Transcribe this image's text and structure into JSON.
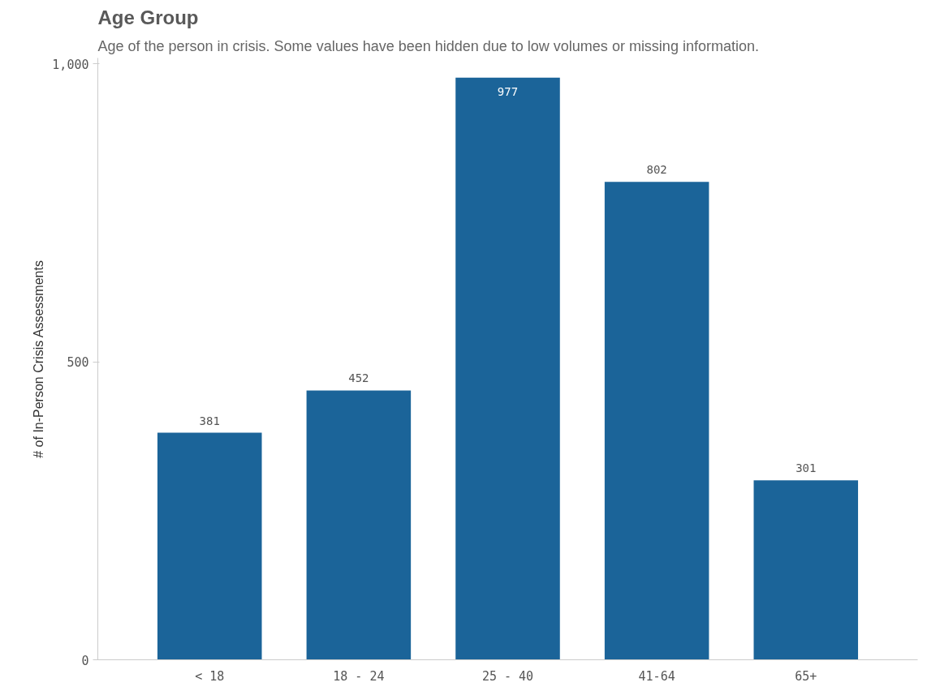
{
  "chart_data": {
    "type": "bar",
    "title": "Age Group",
    "subtitle": "Age of the person in crisis. Some values have been hidden due to low volumes or missing information.",
    "ylabel": "# of In-Person Crisis Assessments",
    "categories": [
      "< 18",
      "18 - 24",
      "25 - 40",
      "41-64",
      "65+"
    ],
    "values": [
      381,
      452,
      977,
      802,
      301
    ],
    "color": "#1b6499",
    "ylim": [
      0,
      1010
    ],
    "yticks": [
      0,
      500,
      {
        "value": 1000,
        "label": "1,000"
      }
    ],
    "grid": false,
    "data_labels": true
  }
}
